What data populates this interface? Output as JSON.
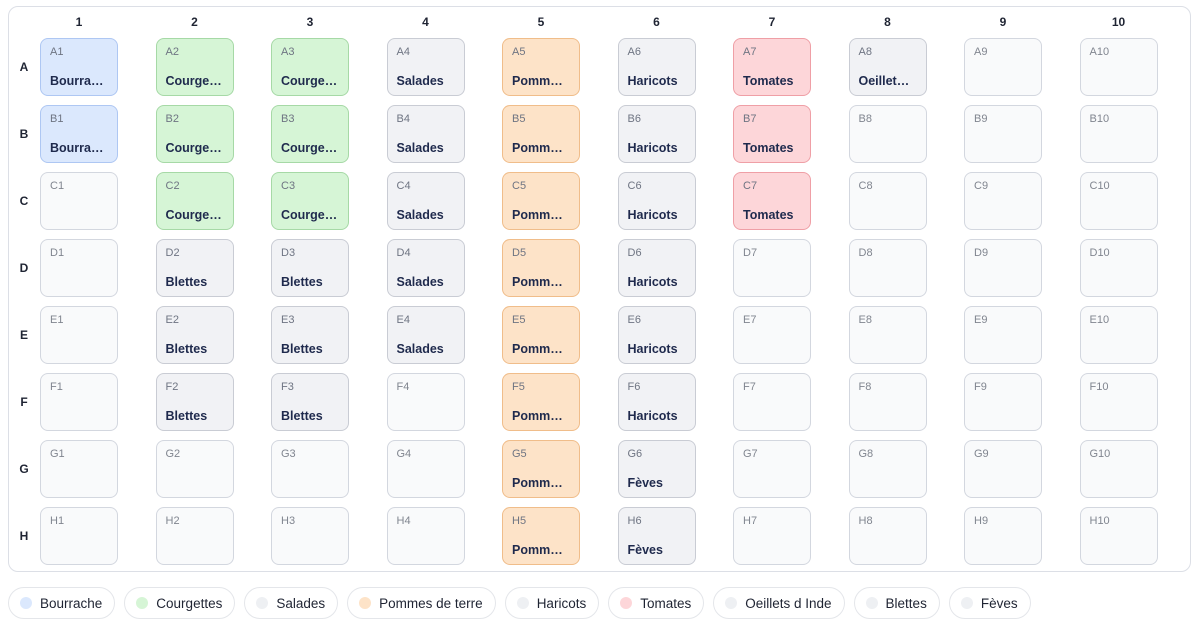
{
  "grid": {
    "columns": [
      "1",
      "2",
      "3",
      "4",
      "5",
      "6",
      "7",
      "8",
      "9",
      "10"
    ],
    "rows": [
      "A",
      "B",
      "C",
      "D",
      "E",
      "F",
      "G",
      "H"
    ]
  },
  "crops": {
    "bourrache": {
      "name": "Bourrache",
      "short": "Bourra…",
      "color": "#dbe8fd",
      "border": "#aec7f3"
    },
    "courgettes": {
      "name": "Courgettes",
      "short": "Courge…",
      "color": "#d6f5d6",
      "border": "#a6d9a6"
    },
    "salades": {
      "name": "Salades",
      "short": "Salades",
      "color": "#f1f2f5",
      "border": "#c9ccd4"
    },
    "pommes": {
      "name": "Pommes de terre",
      "short": "Pomm…",
      "color": "#fde3c8",
      "border": "#f0bd8a"
    },
    "haricots": {
      "name": "Haricots",
      "short": "Haricots",
      "color": "#f1f2f5",
      "border": "#c9ccd4"
    },
    "tomates": {
      "name": "Tomates",
      "short": "Tomates",
      "color": "#fdd6d9",
      "border": "#ef9fa6"
    },
    "oeillets": {
      "name": "Oeillets d Inde",
      "short": "Oeillet…",
      "color": "#f1f2f5",
      "border": "#c9ccd4"
    },
    "blettes": {
      "name": "Blettes",
      "short": "Blettes",
      "color": "#f1f2f5",
      "border": "#c9ccd4"
    },
    "feves": {
      "name": "Fèves",
      "short": "Fèves",
      "color": "#f1f2f5",
      "border": "#c9ccd4"
    }
  },
  "plots": [
    {
      "id": "A1",
      "crop": "bourrache",
      "label": "Bourra…"
    },
    {
      "id": "A2",
      "crop": "courgettes",
      "label": "Courge…"
    },
    {
      "id": "A3",
      "crop": "courgettes",
      "label": "Courge…"
    },
    {
      "id": "A4",
      "crop": "salades",
      "label": "Salades"
    },
    {
      "id": "A5",
      "crop": "pommes",
      "label": "Pomm…"
    },
    {
      "id": "A6",
      "crop": "haricots",
      "label": "Haricots"
    },
    {
      "id": "A7",
      "crop": "tomates",
      "label": "Tomates"
    },
    {
      "id": "A8",
      "crop": "oeillets",
      "label": "Oeillet…"
    },
    {
      "id": "A9",
      "crop": null,
      "label": ""
    },
    {
      "id": "A10",
      "crop": null,
      "label": ""
    },
    {
      "id": "B1",
      "crop": "bourrache",
      "label": "Bourra…"
    },
    {
      "id": "B2",
      "crop": "courgettes",
      "label": "Courge…"
    },
    {
      "id": "B3",
      "crop": "courgettes",
      "label": "Courge…"
    },
    {
      "id": "B4",
      "crop": "salades",
      "label": "Salades"
    },
    {
      "id": "B5",
      "crop": "pommes",
      "label": "Pomm…"
    },
    {
      "id": "B6",
      "crop": "haricots",
      "label": "Haricots"
    },
    {
      "id": "B7",
      "crop": "tomates",
      "label": "Tomates"
    },
    {
      "id": "B8",
      "crop": null,
      "label": ""
    },
    {
      "id": "B9",
      "crop": null,
      "label": ""
    },
    {
      "id": "B10",
      "crop": null,
      "label": ""
    },
    {
      "id": "C1",
      "crop": null,
      "label": ""
    },
    {
      "id": "C2",
      "crop": "courgettes",
      "label": "Courge…"
    },
    {
      "id": "C3",
      "crop": "courgettes",
      "label": "Courge…"
    },
    {
      "id": "C4",
      "crop": "salades",
      "label": "Salades"
    },
    {
      "id": "C5",
      "crop": "pommes",
      "label": "Pomm…"
    },
    {
      "id": "C6",
      "crop": "haricots",
      "label": "Haricots"
    },
    {
      "id": "C7",
      "crop": "tomates",
      "label": "Tomates"
    },
    {
      "id": "C8",
      "crop": null,
      "label": ""
    },
    {
      "id": "C9",
      "crop": null,
      "label": ""
    },
    {
      "id": "C10",
      "crop": null,
      "label": ""
    },
    {
      "id": "D1",
      "crop": null,
      "label": ""
    },
    {
      "id": "D2",
      "crop": "blettes",
      "label": "Blettes"
    },
    {
      "id": "D3",
      "crop": "blettes",
      "label": "Blettes"
    },
    {
      "id": "D4",
      "crop": "salades",
      "label": "Salades"
    },
    {
      "id": "D5",
      "crop": "pommes",
      "label": "Pomm…"
    },
    {
      "id": "D6",
      "crop": "haricots",
      "label": "Haricots"
    },
    {
      "id": "D7",
      "crop": null,
      "label": ""
    },
    {
      "id": "D8",
      "crop": null,
      "label": ""
    },
    {
      "id": "D9",
      "crop": null,
      "label": ""
    },
    {
      "id": "D10",
      "crop": null,
      "label": ""
    },
    {
      "id": "E1",
      "crop": null,
      "label": ""
    },
    {
      "id": "E2",
      "crop": "blettes",
      "label": "Blettes"
    },
    {
      "id": "E3",
      "crop": "blettes",
      "label": "Blettes"
    },
    {
      "id": "E4",
      "crop": "salades",
      "label": "Salades"
    },
    {
      "id": "E5",
      "crop": "pommes",
      "label": "Pomm…"
    },
    {
      "id": "E6",
      "crop": "haricots",
      "label": "Haricots"
    },
    {
      "id": "E7",
      "crop": null,
      "label": ""
    },
    {
      "id": "E8",
      "crop": null,
      "label": ""
    },
    {
      "id": "E9",
      "crop": null,
      "label": ""
    },
    {
      "id": "E10",
      "crop": null,
      "label": ""
    },
    {
      "id": "F1",
      "crop": null,
      "label": ""
    },
    {
      "id": "F2",
      "crop": "blettes",
      "label": "Blettes"
    },
    {
      "id": "F3",
      "crop": "blettes",
      "label": "Blettes"
    },
    {
      "id": "F4",
      "crop": null,
      "label": ""
    },
    {
      "id": "F5",
      "crop": "pommes",
      "label": "Pomm…"
    },
    {
      "id": "F6",
      "crop": "haricots",
      "label": "Haricots"
    },
    {
      "id": "F7",
      "crop": null,
      "label": ""
    },
    {
      "id": "F8",
      "crop": null,
      "label": ""
    },
    {
      "id": "F9",
      "crop": null,
      "label": ""
    },
    {
      "id": "F10",
      "crop": null,
      "label": ""
    },
    {
      "id": "G1",
      "crop": null,
      "label": ""
    },
    {
      "id": "G2",
      "crop": null,
      "label": ""
    },
    {
      "id": "G3",
      "crop": null,
      "label": ""
    },
    {
      "id": "G4",
      "crop": null,
      "label": ""
    },
    {
      "id": "G5",
      "crop": "pommes",
      "label": "Pomm…"
    },
    {
      "id": "G6",
      "crop": "feves",
      "label": "Fèves"
    },
    {
      "id": "G7",
      "crop": null,
      "label": ""
    },
    {
      "id": "G8",
      "crop": null,
      "label": ""
    },
    {
      "id": "G9",
      "crop": null,
      "label": ""
    },
    {
      "id": "G10",
      "crop": null,
      "label": ""
    },
    {
      "id": "H1",
      "crop": null,
      "label": ""
    },
    {
      "id": "H2",
      "crop": null,
      "label": ""
    },
    {
      "id": "H3",
      "crop": null,
      "label": ""
    },
    {
      "id": "H4",
      "crop": null,
      "label": ""
    },
    {
      "id": "H5",
      "crop": "pommes",
      "label": "Pomm…"
    },
    {
      "id": "H6",
      "crop": "feves",
      "label": "Fèves"
    },
    {
      "id": "H7",
      "crop": null,
      "label": ""
    },
    {
      "id": "H8",
      "crop": null,
      "label": ""
    },
    {
      "id": "H9",
      "crop": null,
      "label": ""
    },
    {
      "id": "H10",
      "crop": null,
      "label": ""
    }
  ],
  "legend": [
    {
      "label": "Bourrache",
      "color": "#dbe8fd"
    },
    {
      "label": "Courgettes",
      "color": "#d6f5d6"
    },
    {
      "label": "Salades",
      "color": "#eef0f3"
    },
    {
      "label": "Pommes de terre",
      "color": "#fde3c8"
    },
    {
      "label": "Haricots",
      "color": "#eef0f3"
    },
    {
      "label": "Tomates",
      "color": "#fdd6d9"
    },
    {
      "label": "Oeillets d Inde",
      "color": "#eef0f3"
    },
    {
      "label": "Blettes",
      "color": "#eef0f3"
    },
    {
      "label": "Fèves",
      "color": "#eef0f3"
    }
  ]
}
